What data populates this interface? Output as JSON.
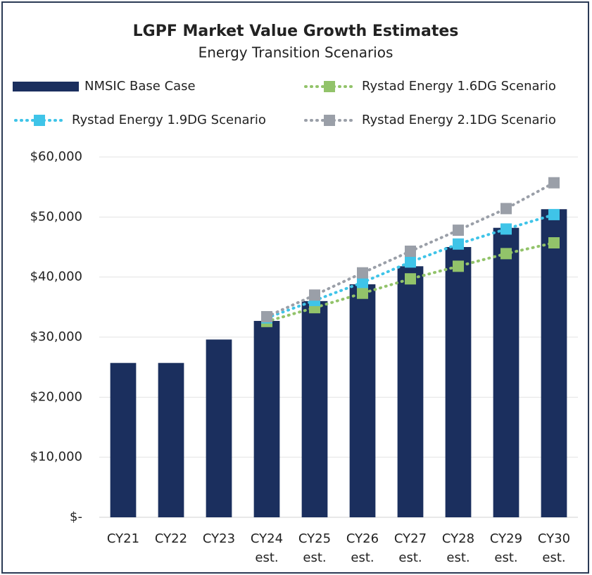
{
  "chart_data": {
    "type": "bar_line",
    "title": "LGPF Market Value Growth Estimates",
    "subtitle": "Energy Transition Scenarios",
    "categories": [
      [
        "CY21"
      ],
      [
        "CY22"
      ],
      [
        "CY23"
      ],
      [
        "CY24",
        "est."
      ],
      [
        "CY25",
        "est."
      ],
      [
        "CY26",
        "est."
      ],
      [
        "CY27",
        "est."
      ],
      [
        "CY28",
        "est."
      ],
      [
        "CY29",
        "est."
      ],
      [
        "CY30",
        "est."
      ]
    ],
    "series": [
      {
        "name": "NMSIC Base Case",
        "type": "bar",
        "color": "#1b2f5e",
        "values": [
          25700,
          25700,
          29600,
          32700,
          36000,
          38800,
          41800,
          45000,
          48200,
          51300
        ]
      },
      {
        "name": "Rystad Energy 1.6DG Scenario",
        "type": "line",
        "color": "#92c36a",
        "values": [
          null,
          null,
          null,
          32600,
          34900,
          37300,
          39700,
          41800,
          43900,
          45700
        ]
      },
      {
        "name": "Rystad Energy 1.9DG Scenario",
        "type": "line",
        "color": "#3fc4e8",
        "values": [
          null,
          null,
          null,
          33200,
          36100,
          39100,
          42500,
          45500,
          48000,
          50400
        ]
      },
      {
        "name": "Rystad Energy 2.1DG Scenario",
        "type": "line",
        "color": "#9a9fa8",
        "values": [
          null,
          null,
          null,
          33400,
          37000,
          40700,
          44300,
          47800,
          51400,
          55700
        ]
      }
    ],
    "ylim": [
      0,
      60000
    ],
    "yticks": [
      {
        "value": 0,
        "label": "$-"
      },
      {
        "value": 10000,
        "label": "$10,000"
      },
      {
        "value": 20000,
        "label": "$20,000"
      },
      {
        "value": 30000,
        "label": "$30,000"
      },
      {
        "value": 40000,
        "label": "$40,000"
      },
      {
        "value": 50000,
        "label": "$50,000"
      },
      {
        "value": 60000,
        "label": "$60,000"
      }
    ],
    "grid": true
  }
}
